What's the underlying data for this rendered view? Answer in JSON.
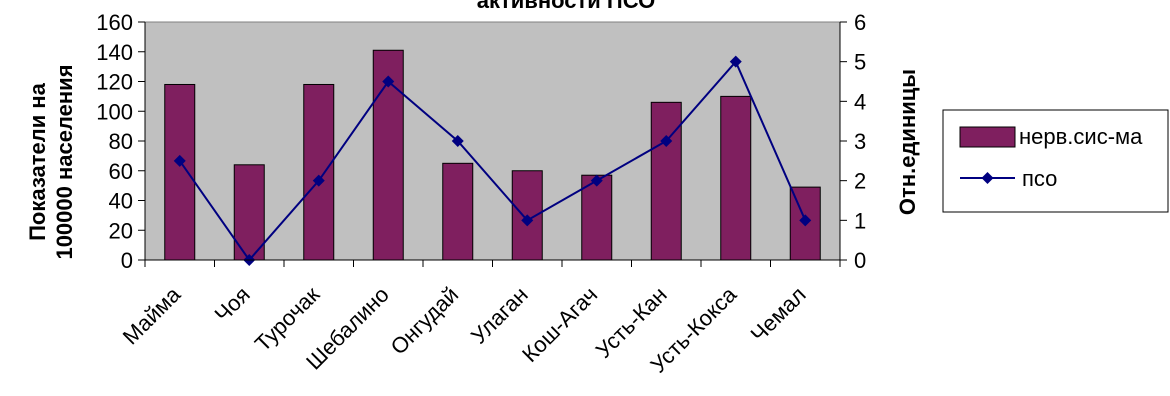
{
  "chart_data": {
    "type": "bar",
    "title": "активности ПСО",
    "categories": [
      "Майма",
      "Чоя",
      "Турочак",
      "Шебалино",
      "Онгудай",
      "Улаган",
      "Кош-Агач",
      "Усть-Кан",
      "Усть-Кокса",
      "Чемал"
    ],
    "series": [
      {
        "name": "нерв.сис-ма",
        "type": "bar",
        "axis": "left",
        "color": "#7F1F5F",
        "values": [
          118,
          64,
          118,
          141,
          65,
          60,
          57,
          106,
          110,
          49
        ]
      },
      {
        "name": "псо",
        "type": "line",
        "axis": "right",
        "color": "#000080",
        "values": [
          2.5,
          0,
          2,
          4.5,
          3,
          1,
          2,
          3,
          5,
          1
        ]
      }
    ],
    "ylabel_left": [
      "Показатели на",
      "100000 населения"
    ],
    "ylabel_right": "Отн.единицы",
    "ylim_left": [
      0,
      160
    ],
    "yticks_left": [
      0,
      20,
      40,
      60,
      80,
      100,
      120,
      140,
      160
    ],
    "ylim_right": [
      0,
      6
    ],
    "yticks_right": [
      0,
      1,
      2,
      3,
      4,
      5,
      6
    ],
    "plot_background": "#C0C0C0",
    "grid": false,
    "legend_position": "right"
  }
}
